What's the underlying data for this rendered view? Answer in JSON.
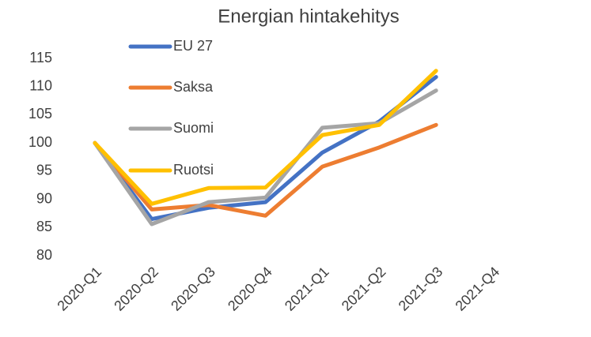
{
  "chart_data": {
    "type": "line",
    "title": "Energian hintakehitys",
    "categories": [
      "2020-Q1",
      "2020-Q2",
      "2020-Q3",
      "2020-Q4",
      "2021-Q1",
      "2021-Q2",
      "2021-Q3",
      "2021-Q4"
    ],
    "series": [
      {
        "name": "EU 27",
        "color": "#4472c4",
        "values": [
          100,
          86.5,
          88.5,
          89.5,
          98.3,
          103.8,
          111.7,
          null
        ]
      },
      {
        "name": "Saksa",
        "color": "#ed7d31",
        "values": [
          100,
          88.2,
          89,
          87.1,
          95.8,
          99.2,
          103.2,
          null
        ]
      },
      {
        "name": "Suomi",
        "color": "#a5a5a5",
        "values": [
          100,
          85.6,
          89.5,
          90.3,
          102.7,
          103.5,
          109.3,
          null
        ]
      },
      {
        "name": "Ruotsi",
        "color": "#ffc000",
        "values": [
          100,
          89.2,
          92,
          92.1,
          101.4,
          103.2,
          112.8,
          null
        ]
      }
    ],
    "ylim": [
      80,
      115
    ],
    "yticks": [
      80,
      85,
      90,
      95,
      100,
      105,
      110,
      115
    ],
    "grid": false
  }
}
